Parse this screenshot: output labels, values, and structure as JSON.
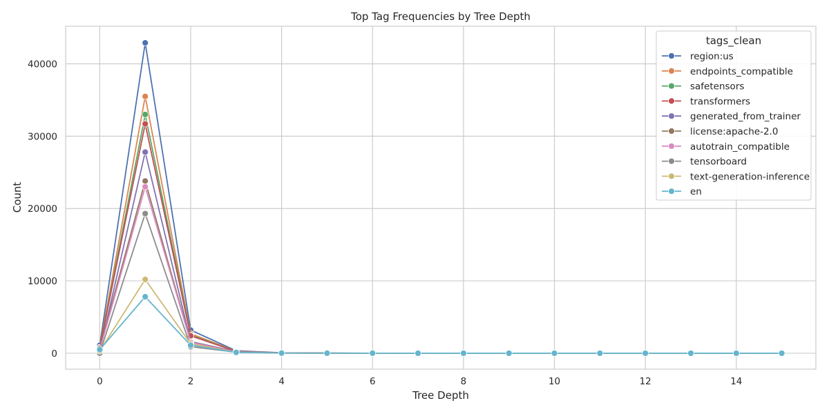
{
  "chart_data": {
    "type": "line",
    "title": "Top Tag Frequencies by Tree Depth",
    "xlabel": "Tree Depth",
    "ylabel": "Count",
    "xlim": [
      -0.75,
      15.75
    ],
    "ylim": [
      -2200,
      45200
    ],
    "xticks": [
      0,
      2,
      4,
      6,
      8,
      10,
      12,
      14
    ],
    "yticks": [
      0,
      10000,
      20000,
      30000,
      40000
    ],
    "grid": true,
    "legend_title": "tags_clean",
    "legend_position": "top-right",
    "x": [
      0,
      1,
      2,
      3,
      4,
      5,
      6,
      7,
      8,
      9,
      10,
      11,
      12,
      13,
      14,
      15
    ],
    "series": [
      {
        "name": "region:us",
        "color": "#4c72b0",
        "values": [
          1100,
          42900,
          3200,
          350,
          60,
          15,
          5,
          3,
          2,
          1,
          1,
          1,
          0,
          0,
          0,
          0
        ]
      },
      {
        "name": "endpoints_compatible",
        "color": "#dd8452",
        "values": [
          800,
          35500,
          2700,
          300,
          50,
          12,
          4,
          2,
          1,
          1,
          1,
          0,
          0,
          0,
          0,
          0
        ]
      },
      {
        "name": "safetensors",
        "color": "#55a868",
        "values": [
          700,
          33000,
          2500,
          280,
          45,
          10,
          4,
          2,
          1,
          1,
          0,
          0,
          0,
          0,
          0,
          0
        ]
      },
      {
        "name": "transformers",
        "color": "#c44e52",
        "values": [
          750,
          31700,
          2400,
          270,
          45,
          10,
          3,
          2,
          1,
          1,
          0,
          0,
          0,
          0,
          0,
          0
        ]
      },
      {
        "name": "generated_from_trainer",
        "color": "#8172b3",
        "values": [
          300,
          27800,
          1600,
          250,
          40,
          8,
          3,
          1,
          1,
          0,
          0,
          0,
          0,
          0,
          0,
          0
        ]
      },
      {
        "name": "license:apache-2.0",
        "color": "#937860",
        "values": [
          700,
          23800,
          1550,
          200,
          35,
          8,
          3,
          1,
          1,
          0,
          0,
          0,
          0,
          0,
          0,
          0
        ]
      },
      {
        "name": "autotrain_compatible",
        "color": "#da8bc3",
        "values": [
          400,
          23000,
          1500,
          190,
          30,
          7,
          2,
          1,
          0,
          0,
          0,
          0,
          0,
          0,
          0,
          0
        ]
      },
      {
        "name": "tensorboard",
        "color": "#8c8c8c",
        "values": [
          0,
          19300,
          900,
          150,
          25,
          5,
          2,
          1,
          0,
          0,
          0,
          0,
          0,
          0,
          0,
          0
        ]
      },
      {
        "name": "text-generation-inference",
        "color": "#ccb974",
        "values": [
          300,
          10200,
          1300,
          130,
          20,
          5,
          2,
          1,
          0,
          0,
          0,
          0,
          0,
          0,
          0,
          0
        ]
      },
      {
        "name": "en",
        "color": "#64b5cd",
        "values": [
          500,
          7800,
          1100,
          120,
          20,
          5,
          2,
          1,
          0,
          0,
          0,
          0,
          0,
          0,
          0,
          0
        ]
      }
    ]
  }
}
